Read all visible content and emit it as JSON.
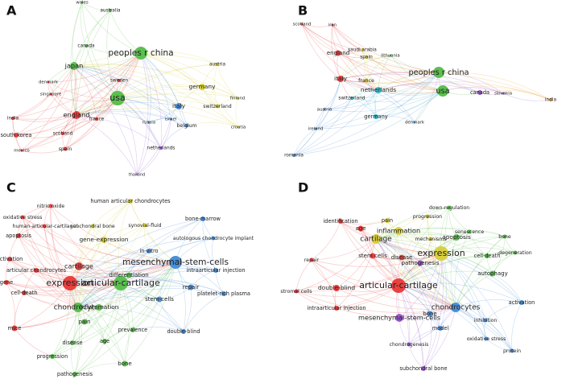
{
  "panels": [
    {
      "label": "A",
      "nodes": [
        {
          "label": "wales",
          "color": "#5cbf4f"
        },
        {
          "label": "australia",
          "color": "#5cbf4f"
        },
        {
          "label": "canada",
          "color": "#5cbf4f"
        },
        {
          "label": "japan",
          "color": "#5cbf4f"
        },
        {
          "label": "peoples r china",
          "color": "#5cbf4f"
        },
        {
          "label": "austria",
          "color": "#d8d040"
        },
        {
          "label": "sweden",
          "color": "#e8413f"
        },
        {
          "label": "denmark",
          "color": "#e8413f"
        },
        {
          "label": "germany",
          "color": "#d8d040"
        },
        {
          "label": "singapore",
          "color": "#e8413f"
        },
        {
          "label": "usa",
          "color": "#5cbf4f"
        },
        {
          "label": "finland",
          "color": "#d8d040"
        },
        {
          "label": "italy",
          "color": "#4a90d9"
        },
        {
          "label": "switzerland",
          "color": "#d8d040"
        },
        {
          "label": "france",
          "color": "#e8413f"
        },
        {
          "label": "england",
          "color": "#e8413f"
        },
        {
          "label": "israel",
          "color": "#4a90d9"
        },
        {
          "label": "russia",
          "color": "#4a90d9"
        },
        {
          "label": "india",
          "color": "#e8413f"
        },
        {
          "label": "belgium",
          "color": "#4a90d9"
        },
        {
          "label": "scotland",
          "color": "#e8413f"
        },
        {
          "label": "croatia",
          "color": "#d8d040"
        },
        {
          "label": "south korea",
          "color": "#e8413f"
        },
        {
          "label": "netherlands",
          "color": "#9b59d0"
        },
        {
          "label": "spain",
          "color": "#e8413f"
        },
        {
          "label": "mexico",
          "color": "#e8413f"
        },
        {
          "label": "thailand",
          "color": "#9b59d0"
        }
      ]
    },
    {
      "label": "B",
      "nodes": [
        {
          "label": "scotland",
          "color": "#e8413f"
        },
        {
          "label": "iran",
          "color": "#e8413f"
        },
        {
          "label": "england",
          "color": "#e8413f"
        },
        {
          "label": "saudi arabia",
          "color": "#d8d040"
        },
        {
          "label": "spain",
          "color": "#d8d040"
        },
        {
          "label": "lithuania",
          "color": "#5cbf4f"
        },
        {
          "label": "italy",
          "color": "#e8413f"
        },
        {
          "label": "france",
          "color": "#d8d040"
        },
        {
          "label": "peoples r china",
          "color": "#5cbf4f"
        },
        {
          "label": "netherlands",
          "color": "#3bb8c8"
        },
        {
          "label": "usa",
          "color": "#5cbf4f"
        },
        {
          "label": "canada",
          "color": "#9b59d0"
        },
        {
          "label": "slovakia",
          "color": "#9b59d0"
        },
        {
          "label": "switzerland",
          "color": "#3bb8c8"
        },
        {
          "label": "austria",
          "color": "#4a90d9"
        },
        {
          "label": "germany",
          "color": "#3bb8c8"
        },
        {
          "label": "denmark",
          "color": "#4a90d9"
        },
        {
          "label": "ireland",
          "color": "#4a90d9"
        },
        {
          "label": "romania",
          "color": "#4a90d9"
        },
        {
          "label": "india",
          "color": "#f0a030"
        }
      ]
    },
    {
      "label": "C",
      "nodes": [
        {
          "label": "nitric oxide",
          "color": "#e8413f"
        },
        {
          "label": "human articular chondrocytes",
          "color": "#d8d040"
        },
        {
          "label": "oxidative stress",
          "color": "#e8413f"
        },
        {
          "label": "human-articular-cartilage",
          "color": "#e8413f"
        },
        {
          "label": "subchondral bone",
          "color": "#d8d040"
        },
        {
          "label": "synovial-fluid",
          "color": "#d8d040"
        },
        {
          "label": "bone-marrow",
          "color": "#4a90d9"
        },
        {
          "label": "apoptosis",
          "color": "#e8413f"
        },
        {
          "label": "gene-expression",
          "color": "#d8d040"
        },
        {
          "label": "autologous chondrocyte implant",
          "color": "#4a90d9"
        },
        {
          "label": "in-vitro",
          "color": "#4a90d9"
        },
        {
          "label": "activation",
          "color": "#e8413f"
        },
        {
          "label": "mesenchymal-stem-cells",
          "color": "#4a90d9"
        },
        {
          "label": "articular chondrocytes",
          "color": "#e8413f"
        },
        {
          "label": "cartilage",
          "color": "#e8413f"
        },
        {
          "label": "intraarticular injection",
          "color": "#4a90d9"
        },
        {
          "label": "expression",
          "color": "#e8413f"
        },
        {
          "label": "articular-cartilage",
          "color": "#5cbf4f"
        },
        {
          "label": "differentiation",
          "color": "#5cbf4f"
        },
        {
          "label": "gene",
          "color": "#e8413f"
        },
        {
          "label": "repair",
          "color": "#4a90d9"
        },
        {
          "label": "platelet-rich plasma",
          "color": "#4a90d9"
        },
        {
          "label": "cell-death",
          "color": "#e8413f"
        },
        {
          "label": "chondrocytes",
          "color": "#5cbf4f"
        },
        {
          "label": "inflammation",
          "color": "#5cbf4f"
        },
        {
          "label": "stem-cells",
          "color": "#4a90d9"
        },
        {
          "label": "mice",
          "color": "#e8413f"
        },
        {
          "label": "prevalence",
          "color": "#5cbf4f"
        },
        {
          "label": "double-blind",
          "color": "#4a90d9"
        },
        {
          "label": "pain",
          "color": "#5cbf4f"
        },
        {
          "label": "disease",
          "color": "#5cbf4f"
        },
        {
          "label": "age",
          "color": "#5cbf4f"
        },
        {
          "label": "progression",
          "color": "#5cbf4f"
        },
        {
          "label": "bone",
          "color": "#5cbf4f"
        },
        {
          "label": "pathogenesis",
          "color": "#5cbf4f"
        }
      ]
    },
    {
      "label": "D",
      "nodes": [
        {
          "label": "down-regulation",
          "color": "#5cbf4f"
        },
        {
          "label": "pain",
          "color": "#d8d040"
        },
        {
          "label": "progression",
          "color": "#d8d040"
        },
        {
          "label": "senescence",
          "color": "#5cbf4f"
        },
        {
          "label": "identification",
          "color": "#e8413f"
        },
        {
          "label": "age",
          "color": "#e8413f"
        },
        {
          "label": "mechanisms",
          "color": "#d8d040"
        },
        {
          "label": "inflammation",
          "color": "#d8d040"
        },
        {
          "label": "cartilage",
          "color": "#d8d040"
        },
        {
          "label": "apoptosis",
          "color": "#5cbf4f"
        },
        {
          "label": "bone",
          "color": "#5cbf4f"
        },
        {
          "label": "degeneration",
          "color": "#5cbf4f"
        },
        {
          "label": "expression",
          "color": "#d8d040"
        },
        {
          "label": "stem cells",
          "color": "#e8413f"
        },
        {
          "label": "disease",
          "color": "#e8413f"
        },
        {
          "label": "cell-death",
          "color": "#5cbf4f"
        },
        {
          "label": "repair",
          "color": "#e8413f"
        },
        {
          "label": "autophagy",
          "color": "#5cbf4f"
        },
        {
          "label": "pathogenesis",
          "color": "#9b59d0"
        },
        {
          "label": "articular-cartilage",
          "color": "#e8413f"
        },
        {
          "label": "double-blind",
          "color": "#e8413f"
        },
        {
          "label": "stromal cells",
          "color": "#e8413f"
        },
        {
          "label": "chondrocytes",
          "color": "#4a90d9"
        },
        {
          "label": "activation",
          "color": "#4a90d9"
        },
        {
          "label": "intraarticular injection",
          "color": "#e8413f"
        },
        {
          "label": "bone",
          "color": "#4a90d9"
        },
        {
          "label": "mesenchymal-stem-cells",
          "color": "#9b59d0"
        },
        {
          "label": "model",
          "color": "#4a90d9"
        },
        {
          "label": "inhibition",
          "color": "#4a90d9"
        },
        {
          "label": "oxidative stress",
          "color": "#4a90d9"
        },
        {
          "label": "protein",
          "color": "#4a90d9"
        },
        {
          "label": "chondrogenesis",
          "color": "#9b59d0"
        },
        {
          "label": "subchondral bone",
          "color": "#9b59d0"
        }
      ]
    }
  ]
}
